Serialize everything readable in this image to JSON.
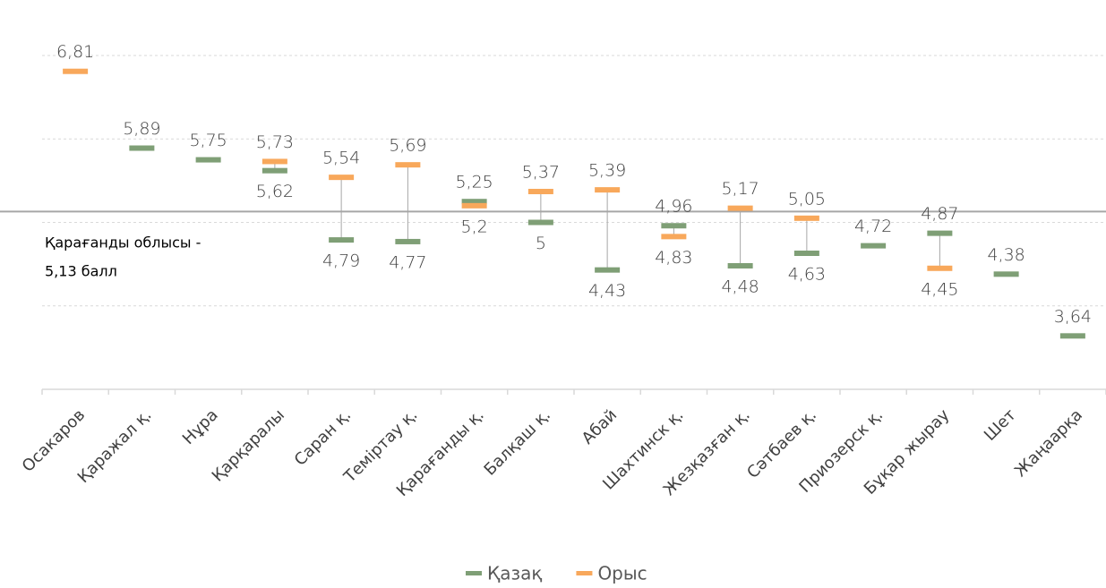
{
  "chart_data": {
    "type": "high-low",
    "categories": [
      "Осакаров",
      "Қаражал қ.",
      "Нұра",
      "Қарқаралы",
      "Саран қ.",
      "Теміртау қ.",
      "Қарағанды қ.",
      "Балқаш қ.",
      "Абай",
      "Шахтинск қ.",
      "Жезқазған қ.",
      "Сәтбаев қ.",
      "Приозерск қ.",
      "Бұқар жырау",
      "Шет",
      "Жаңаарқа"
    ],
    "series": [
      {
        "name": "Қазақ",
        "color": "#7f9f76",
        "values": [
          null,
          5.89,
          5.75,
          5.62,
          4.79,
          4.77,
          5.25,
          5,
          4.43,
          4.96,
          4.48,
          4.63,
          4.72,
          4.87,
          4.38,
          3.64
        ],
        "value_labels": [
          null,
          "5,89",
          "5,75",
          "5,62",
          "4,79",
          "4,77",
          "5,25",
          "5",
          "4,43",
          "4,96",
          "4,48",
          "4,63",
          "4,72",
          "4,87",
          "4,38",
          "3,64"
        ]
      },
      {
        "name": "Орыс",
        "color": "#f8a85b",
        "values": [
          6.81,
          null,
          null,
          5.73,
          5.54,
          5.69,
          5.2,
          5.37,
          5.39,
          4.83,
          5.17,
          5.05,
          null,
          4.45,
          null,
          null
        ],
        "value_labels": [
          "6,81",
          null,
          null,
          "5,73",
          "5,54",
          "5,69",
          "5,2",
          "5,37",
          "5,39",
          "4,83",
          "5,17",
          "5,05",
          null,
          "4,45",
          null,
          null
        ]
      }
    ],
    "reference": {
      "value": 5.13,
      "label": [
        "Қарағанды облысы -",
        "5,13 балл"
      ]
    },
    "ylim": [
      3,
      7
    ],
    "yticks": [
      3,
      4,
      5,
      6,
      7
    ],
    "grid": true,
    "legend": "bottom"
  }
}
